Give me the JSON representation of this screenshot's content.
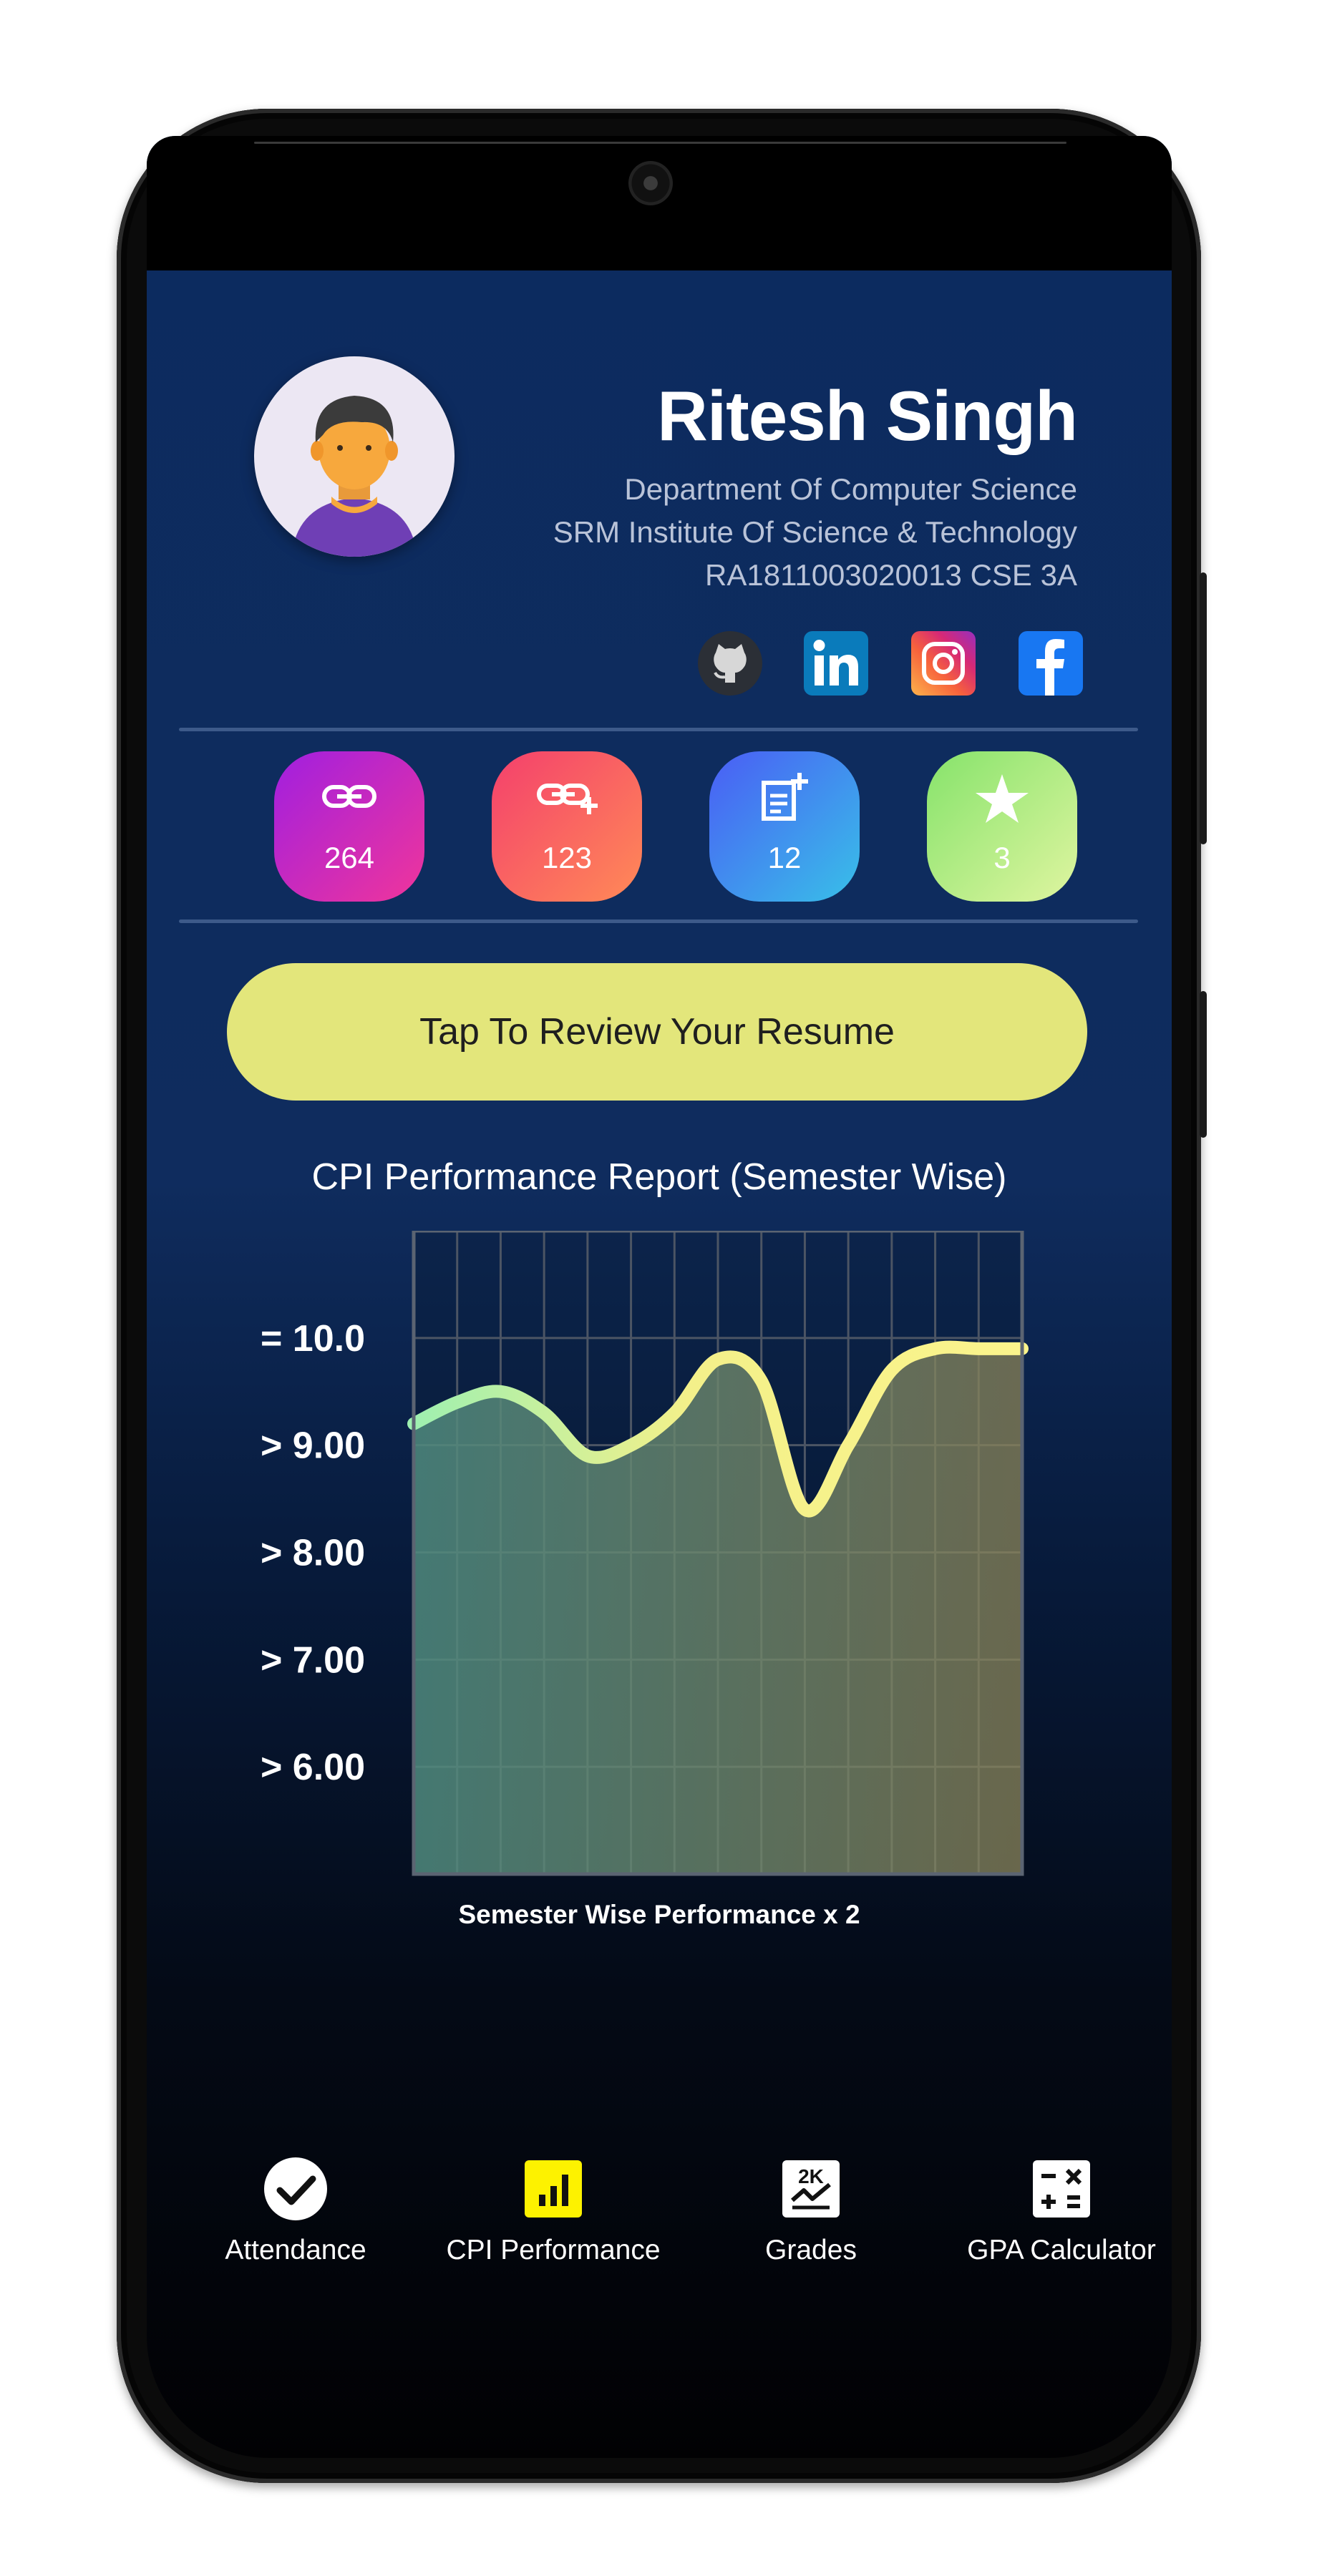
{
  "profile": {
    "name": "Ritesh Singh",
    "department": "Department Of Computer Science",
    "institute": "SRM Institute Of Science & Technology",
    "registration": "RA1811003020013 CSE 3A"
  },
  "social_links": [
    "github-icon",
    "linkedin-icon",
    "instagram-icon",
    "facebook-icon"
  ],
  "stats": [
    {
      "icon": "link-icon",
      "value": "264"
    },
    {
      "icon": "add-link-icon",
      "value": "123"
    },
    {
      "icon": "note-add-icon",
      "value": "12"
    },
    {
      "icon": "star-icon",
      "value": "3"
    }
  ],
  "resume_button": "Tap To  Review Your Resume",
  "chart_data": {
    "type": "area",
    "title": "CPI Performance Report (Semester Wise)",
    "xlabel": "Semester Wise Performance x 2",
    "ylabel": "",
    "y_tick_labels": [
      "= 10.0",
      "> 9.00",
      "> 8.00",
      "> 7.00",
      "> 6.00"
    ],
    "x": [
      0,
      1,
      2,
      3,
      4,
      5,
      6,
      7,
      8,
      9,
      10,
      11,
      12,
      13,
      14
    ],
    "values": [
      9.2,
      9.4,
      9.5,
      9.3,
      8.9,
      9.0,
      9.3,
      9.8,
      9.6,
      8.4,
      9.0,
      9.7,
      9.9,
      9.9,
      9.9
    ],
    "ylim": [
      5.0,
      11.0
    ],
    "grid": true,
    "colors": {
      "line_start": "#9ef0b0",
      "line_end": "#fbf48c",
      "fill": "#8a8a6a"
    }
  },
  "bottom_nav": [
    {
      "icon": "check-circle-icon",
      "label": "Attendance"
    },
    {
      "icon": "bar-chart-icon",
      "label": "CPI Performance"
    },
    {
      "icon": "grades-icon",
      "label": "Grades"
    },
    {
      "icon": "calculator-icon",
      "label": "GPA Calculator"
    }
  ],
  "colors": {
    "background_top": "#0c2b5f",
    "background_bottom": "#010103",
    "resume_button": "#e3e67b",
    "active_nav": "#fdf200"
  }
}
